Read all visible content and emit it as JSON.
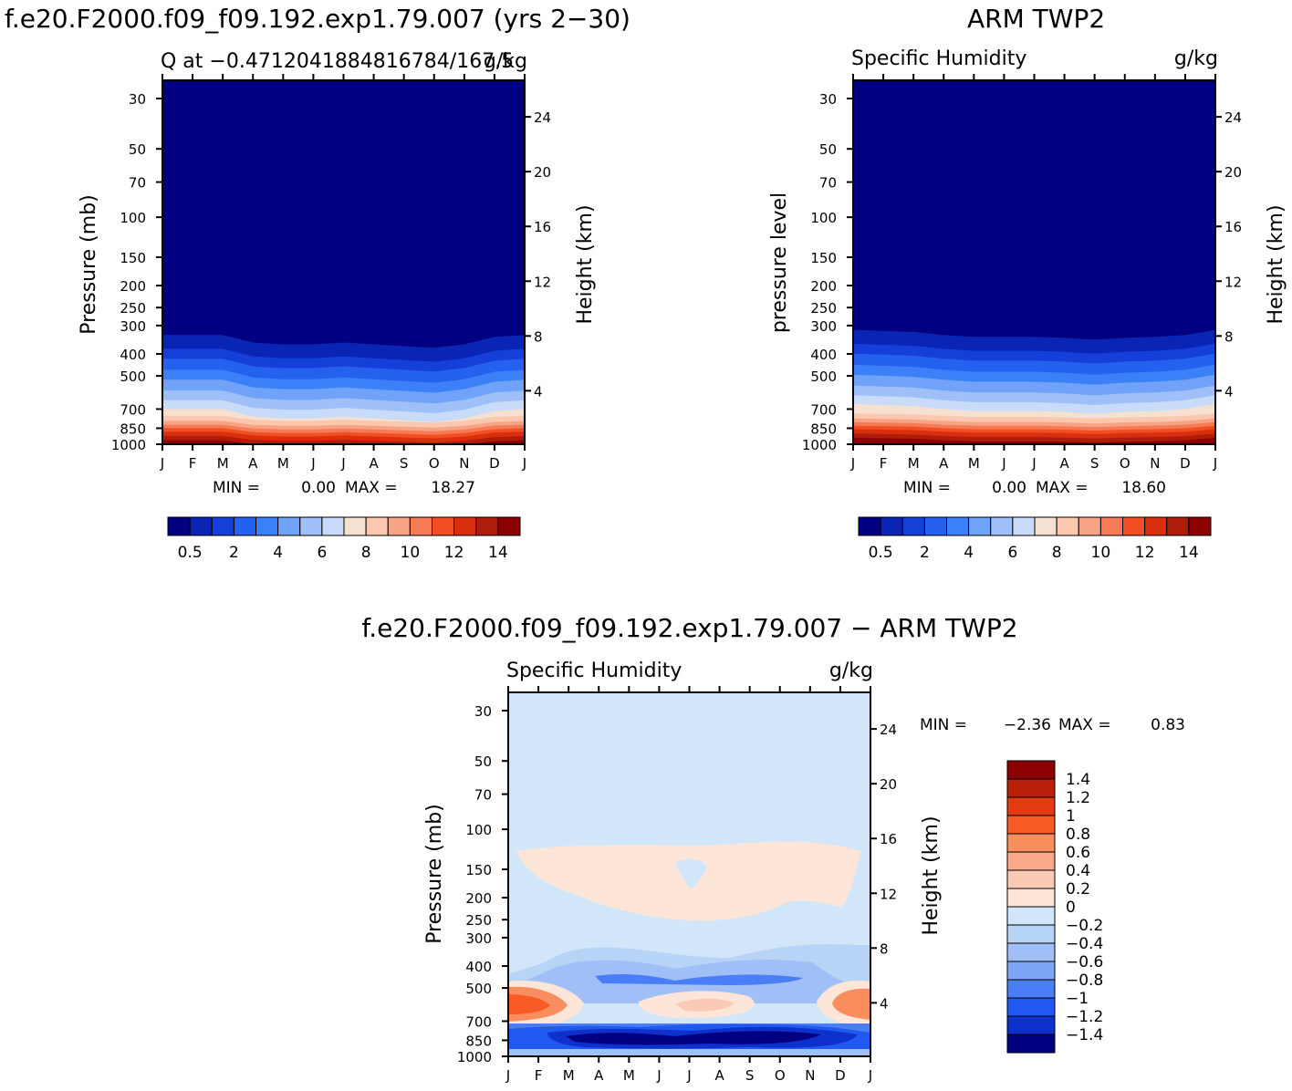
{
  "page": {
    "left_title": "f.e20.F2000.f09_f09.192.exp1.79.007 (yrs 2−30)",
    "right_title": "ARM TWP2",
    "bottom_title": "f.e20.F2000.f09_f09.192.exp1.79.007 − ARM TWP2"
  },
  "colors": {
    "q_levels": [
      "#000080",
      "#0a25b3",
      "#1440d9",
      "#2461ef",
      "#3b80f7",
      "#6fa2f8",
      "#9ebff8",
      "#c8dcfa",
      "#f6e0d0",
      "#fbc7ae",
      "#f7a384",
      "#f57a56",
      "#f24e22",
      "#d8300f",
      "#ae1d0a",
      "#8b0000"
    ],
    "diff_levels": [
      "#8b0000",
      "#b8200a",
      "#e23b12",
      "#f95b26",
      "#fb8e5e",
      "#f8a98a",
      "#fbcab4",
      "#fde6d8",
      "#d2e6fa",
      "#b7d4f7",
      "#9fbff6",
      "#7ea6f6",
      "#4a7ef6",
      "#2158ef",
      "#0e30cb",
      "#000080"
    ]
  },
  "chart_data": [
    {
      "type": "heatmap",
      "name": "model",
      "subtitle": "Q at −0.4712041884816784/167.5",
      "units": "g/kg",
      "ylabel": "Pressure (mb)",
      "y2label": "Height (km)",
      "x_ticks": [
        "J",
        "F",
        "M",
        "A",
        "M",
        "J",
        "J",
        "A",
        "S",
        "O",
        "N",
        "D",
        "J"
      ],
      "y_ticks": [
        30,
        50,
        70,
        100,
        150,
        200,
        250,
        300,
        400,
        500,
        700,
        850,
        1000
      ],
      "y2_ticks": [
        24,
        20,
        16,
        12,
        8,
        4
      ],
      "ylim": [
        30,
        1000
      ],
      "min_label": "MIN =",
      "min_value": "0.00",
      "max_label": "MAX =",
      "max_value": "18.27",
      "colorbar_labels": [
        "0.5",
        "2",
        "4",
        "6",
        "8",
        "10",
        "12",
        "14"
      ],
      "data_min": 0.0,
      "data_max": 18.27,
      "shift": [
        0,
        0,
        0,
        0.08,
        0.1,
        0.1,
        0.08,
        0.1,
        0.12,
        0.14,
        0.1,
        0.02,
        0
      ]
    },
    {
      "type": "heatmap",
      "name": "obs",
      "subtitle": "Specific Humidity",
      "units": "g/kg",
      "ylabel": "pressure level",
      "y2label": "Height (km)",
      "x_ticks": [
        "J",
        "F",
        "M",
        "A",
        "M",
        "J",
        "J",
        "A",
        "S",
        "O",
        "N",
        "D",
        "J"
      ],
      "y_ticks": [
        30,
        50,
        70,
        100,
        150,
        200,
        250,
        300,
        400,
        500,
        700,
        850,
        1000
      ],
      "y2_ticks": [
        24,
        20,
        16,
        12,
        8,
        4
      ],
      "ylim": [
        30,
        1000
      ],
      "min_label": "MIN =",
      "min_value": "0.00",
      "max_label": "MAX =",
      "max_value": "18.60",
      "colorbar_labels": [
        "0.5",
        "2",
        "4",
        "6",
        "8",
        "10",
        "12",
        "14"
      ],
      "data_min": 0.0,
      "data_max": 18.6,
      "shift": [
        -0.05,
        -0.04,
        -0.03,
        0,
        0.02,
        0.02,
        0.02,
        0.03,
        0.05,
        0.03,
        0.02,
        0,
        -0.05
      ]
    },
    {
      "type": "heatmap",
      "name": "difference",
      "subtitle": "Specific Humidity",
      "units": "g/kg",
      "ylabel": "Pressure (mb)",
      "y2label": "Height (km)",
      "x_ticks": [
        "J",
        "F",
        "M",
        "A",
        "M",
        "J",
        "J",
        "A",
        "S",
        "O",
        "N",
        "D",
        "J"
      ],
      "y_ticks": [
        30,
        50,
        70,
        100,
        150,
        200,
        250,
        300,
        400,
        500,
        700,
        850,
        1000
      ],
      "y2_ticks": [
        24,
        20,
        16,
        12,
        8,
        4
      ],
      "ylim": [
        30,
        1000
      ],
      "min_label": "MIN =",
      "min_value": "−2.36",
      "max_label": "MAX =",
      "max_value": "0.83",
      "data_min": -2.36,
      "data_max": 0.83,
      "colorbar_labels": [
        "1.4",
        "1.2",
        "1",
        "0.8",
        "0.6",
        "0.4",
        "0.2",
        "0",
        "−0.2",
        "−0.4",
        "−0.6",
        "−0.8",
        "−1",
        "−1.2",
        "−1.4"
      ]
    }
  ]
}
